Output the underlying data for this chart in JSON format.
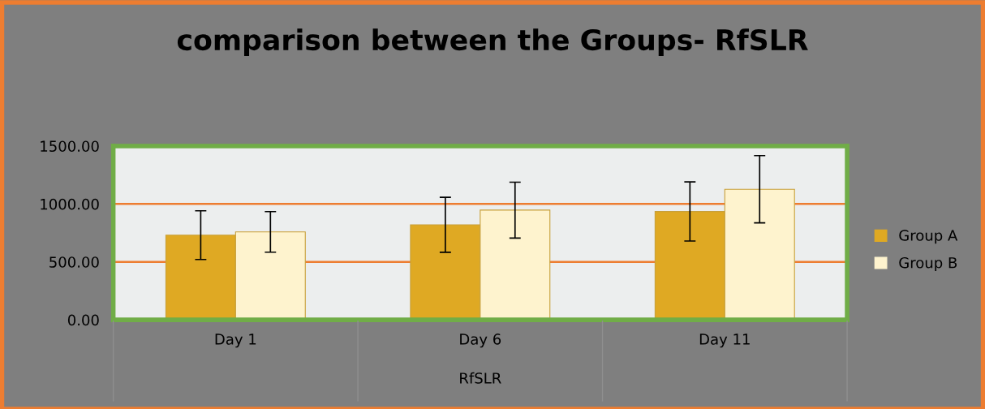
{
  "chart_data": {
    "type": "bar",
    "title": "comparison between the Groups- RfSLR",
    "xlabel": "RfSLR",
    "categories": [
      "Day 1",
      "Day 6",
      "Day 11"
    ],
    "series": [
      {
        "name": "Group A",
        "color": "#dfa923",
        "values": [
          731,
          820,
          935
        ],
        "errors": [
          210,
          237,
          255
        ]
      },
      {
        "name": "Group B",
        "color": "#fef3ce",
        "values": [
          759,
          947,
          1127
        ],
        "errors": [
          175,
          241,
          290
        ]
      }
    ],
    "ylim": [
      0,
      1500
    ],
    "yticks": [
      {
        "value": 0,
        "label": "0.00"
      },
      {
        "value": 500,
        "label": "500.00"
      },
      {
        "value": 1000,
        "label": "1000.00"
      },
      {
        "value": 1500,
        "label": "1500.00"
      }
    ],
    "grid": "y",
    "legend": "right"
  }
}
